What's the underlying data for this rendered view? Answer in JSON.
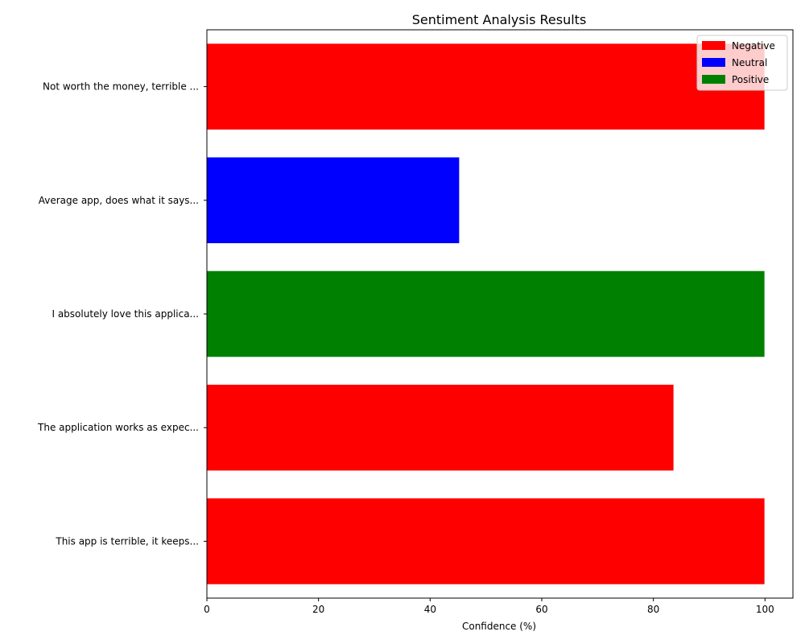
{
  "chart_data": {
    "type": "bar",
    "orientation": "horizontal",
    "title": "Sentiment Analysis Results",
    "xlabel": "Confidence (%)",
    "ylabel": "",
    "xlim": [
      0,
      105
    ],
    "xticks": [
      0,
      20,
      40,
      60,
      80,
      100
    ],
    "grid": false,
    "legend_position": "top-right",
    "categories": [
      "Not worth the money, terrible ...",
      "Average app, does what it says...",
      "I absolutely love this applica...",
      "The application works as expec...",
      "This app is terrible, it keeps..."
    ],
    "values": [
      99.9,
      45.2,
      99.9,
      83.6,
      99.9
    ],
    "sentiments": [
      "Negative",
      "Neutral",
      "Positive",
      "Negative",
      "Negative"
    ],
    "legend": [
      {
        "label": "Negative",
        "color": "#ff0000"
      },
      {
        "label": "Neutral",
        "color": "#0000ff"
      },
      {
        "label": "Positive",
        "color": "#008000"
      }
    ]
  }
}
